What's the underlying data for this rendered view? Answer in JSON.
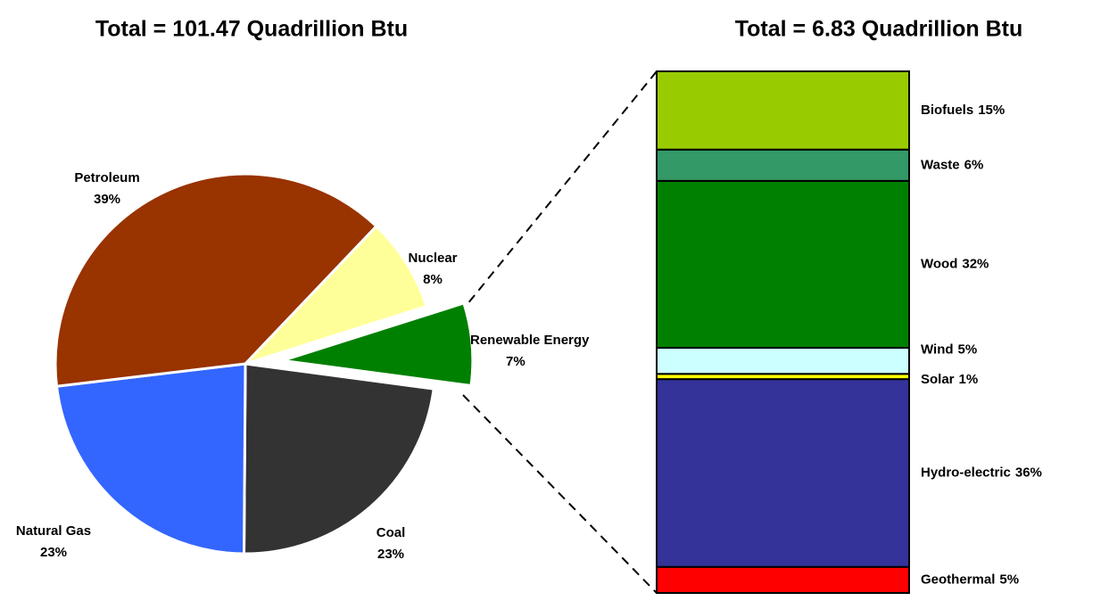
{
  "chart_data": [
    {
      "type": "pie",
      "title": "Total = 101.47 Quadrillion Btu",
      "categories": [
        "Renewable Energy",
        "Coal",
        "Natural Gas",
        "Petroleum",
        "Nuclear"
      ],
      "values": [
        7,
        23,
        23,
        39,
        8
      ],
      "value_labels": [
        "7%",
        "23%",
        "23%",
        "39%",
        "8%"
      ],
      "colors": [
        "#008000",
        "#333333",
        "#3366ff",
        "#993300",
        "#ffff99"
      ]
    },
    {
      "type": "stacked_bar",
      "title": "Total = 6.83 Quadrillion Btu",
      "series": [
        {
          "name": "Geothermal",
          "color": "#ff0000",
          "values": [
            5
          ],
          "value_labels": [
            "5%"
          ]
        },
        {
          "name": "Hydro-electric",
          "color": "#333399",
          "values": [
            36
          ],
          "value_labels": [
            "36%"
          ]
        },
        {
          "name": "Solar",
          "color": "#ffff00",
          "values": [
            1
          ],
          "value_labels": [
            "1%"
          ]
        },
        {
          "name": "Wind",
          "color": "#ccffff",
          "values": [
            5
          ],
          "value_labels": [
            "5%"
          ]
        },
        {
          "name": "Wood",
          "color": "#008000",
          "values": [
            32
          ],
          "value_labels": [
            "32%"
          ]
        },
        {
          "name": "Waste",
          "color": "#339966",
          "values": [
            6
          ],
          "value_labels": [
            "6%"
          ]
        },
        {
          "name": "Biofuels",
          "color": "#99cc00",
          "values": [
            15
          ],
          "value_labels": [
            "15%"
          ]
        }
      ]
    }
  ]
}
